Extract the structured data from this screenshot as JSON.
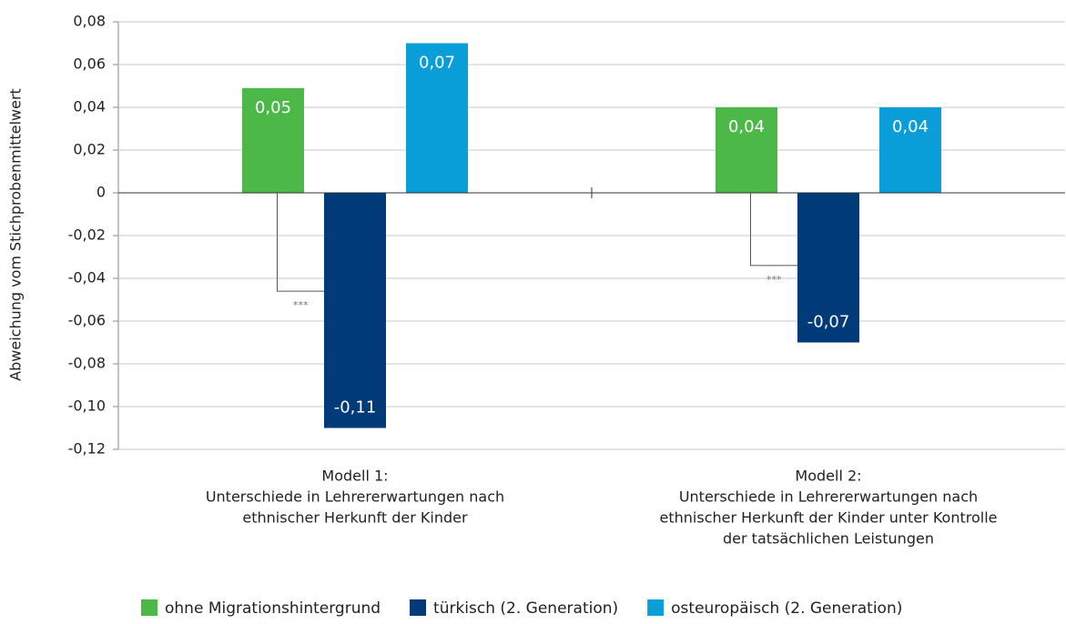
{
  "chart_data": {
    "type": "bar",
    "y_label": "Abweichung vom Stichprobenmittelwert",
    "categories": [
      [
        "Modell 1:",
        "Unterschiede in Lehrererwartungen nach",
        "ethnischer Herkunft der Kinder"
      ],
      [
        "Modell 2:",
        "Unterschiede in Lehrererwartungen nach",
        "ethnischer Herkunft der Kinder unter Kontrolle",
        "der tatsächlichen Leistungen"
      ]
    ],
    "series": [
      {
        "name": "ohne Migrationshintergrund",
        "color": "#4cb848",
        "values": [
          0.049,
          0.04
        ],
        "value_labels": [
          "0,05",
          "0,04"
        ]
      },
      {
        "name": "türkisch (2. Generation)",
        "color": "#003a78",
        "values": [
          -0.11,
          -0.07
        ],
        "value_labels": [
          "-0,11",
          "-0,07"
        ]
      },
      {
        "name": "osteuropäisch (2. Generation)",
        "color": "#0a9ed9",
        "values": [
          0.07,
          0.04
        ],
        "value_labels": [
          "0,07",
          "0,04"
        ]
      }
    ],
    "annotations": [
      {
        "text": "***",
        "category": 0,
        "y": -0.046
      },
      {
        "text": "***",
        "category": 1,
        "y": -0.034
      }
    ],
    "ylim": [
      -0.12,
      0.08
    ],
    "yticks": [
      {
        "value": -0.12,
        "label": "-0,12"
      },
      {
        "value": -0.1,
        "label": "-0,10"
      },
      {
        "value": -0.08,
        "label": "-0,08"
      },
      {
        "value": -0.06,
        "label": "-0,06"
      },
      {
        "value": -0.04,
        "label": "-0,04"
      },
      {
        "value": -0.02,
        "label": "-0,02"
      },
      0,
      {
        "value": 0.02,
        "label": "0,02"
      },
      {
        "value": 0.04,
        "label": "0,04"
      },
      {
        "value": 0.06,
        "label": "0,06"
      },
      {
        "value": 0.08,
        "label": "0,08"
      }
    ],
    "grid": true,
    "legend": "bottom"
  }
}
